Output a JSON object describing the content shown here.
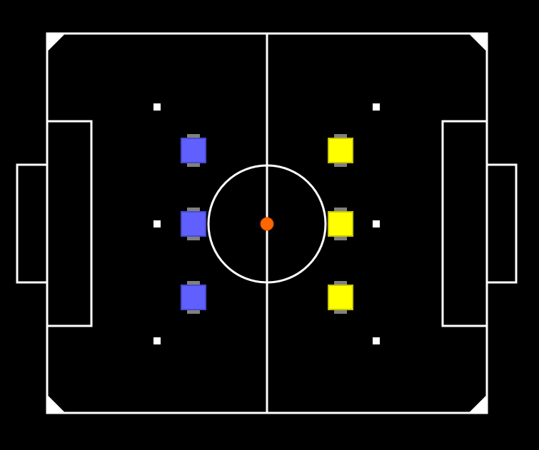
{
  "colors": {
    "background": "#000000",
    "field_lines": "#ffffff",
    "blue_team": "#6060ff",
    "blue_team_border": "#4a4ad0",
    "yellow_team": "#ffff00",
    "yellow_team_border": "#c8c800",
    "robot_wheels": "#808080",
    "ball": "#ff6600"
  },
  "field": {
    "markings": [
      "field-boundary",
      "halfway-line",
      "center-circle",
      "left-goal-area",
      "right-goal-area",
      "left-goal",
      "right-goal",
      "corner-markers",
      "free-kick-marks"
    ]
  },
  "teams": [
    {
      "name": "blue-team",
      "robots": 3,
      "color_key": "blue_team"
    },
    {
      "name": "yellow-team",
      "robots": 3,
      "color_key": "yellow_team"
    }
  ],
  "ball": {
    "icon": "ball-icon",
    "position": "center"
  }
}
